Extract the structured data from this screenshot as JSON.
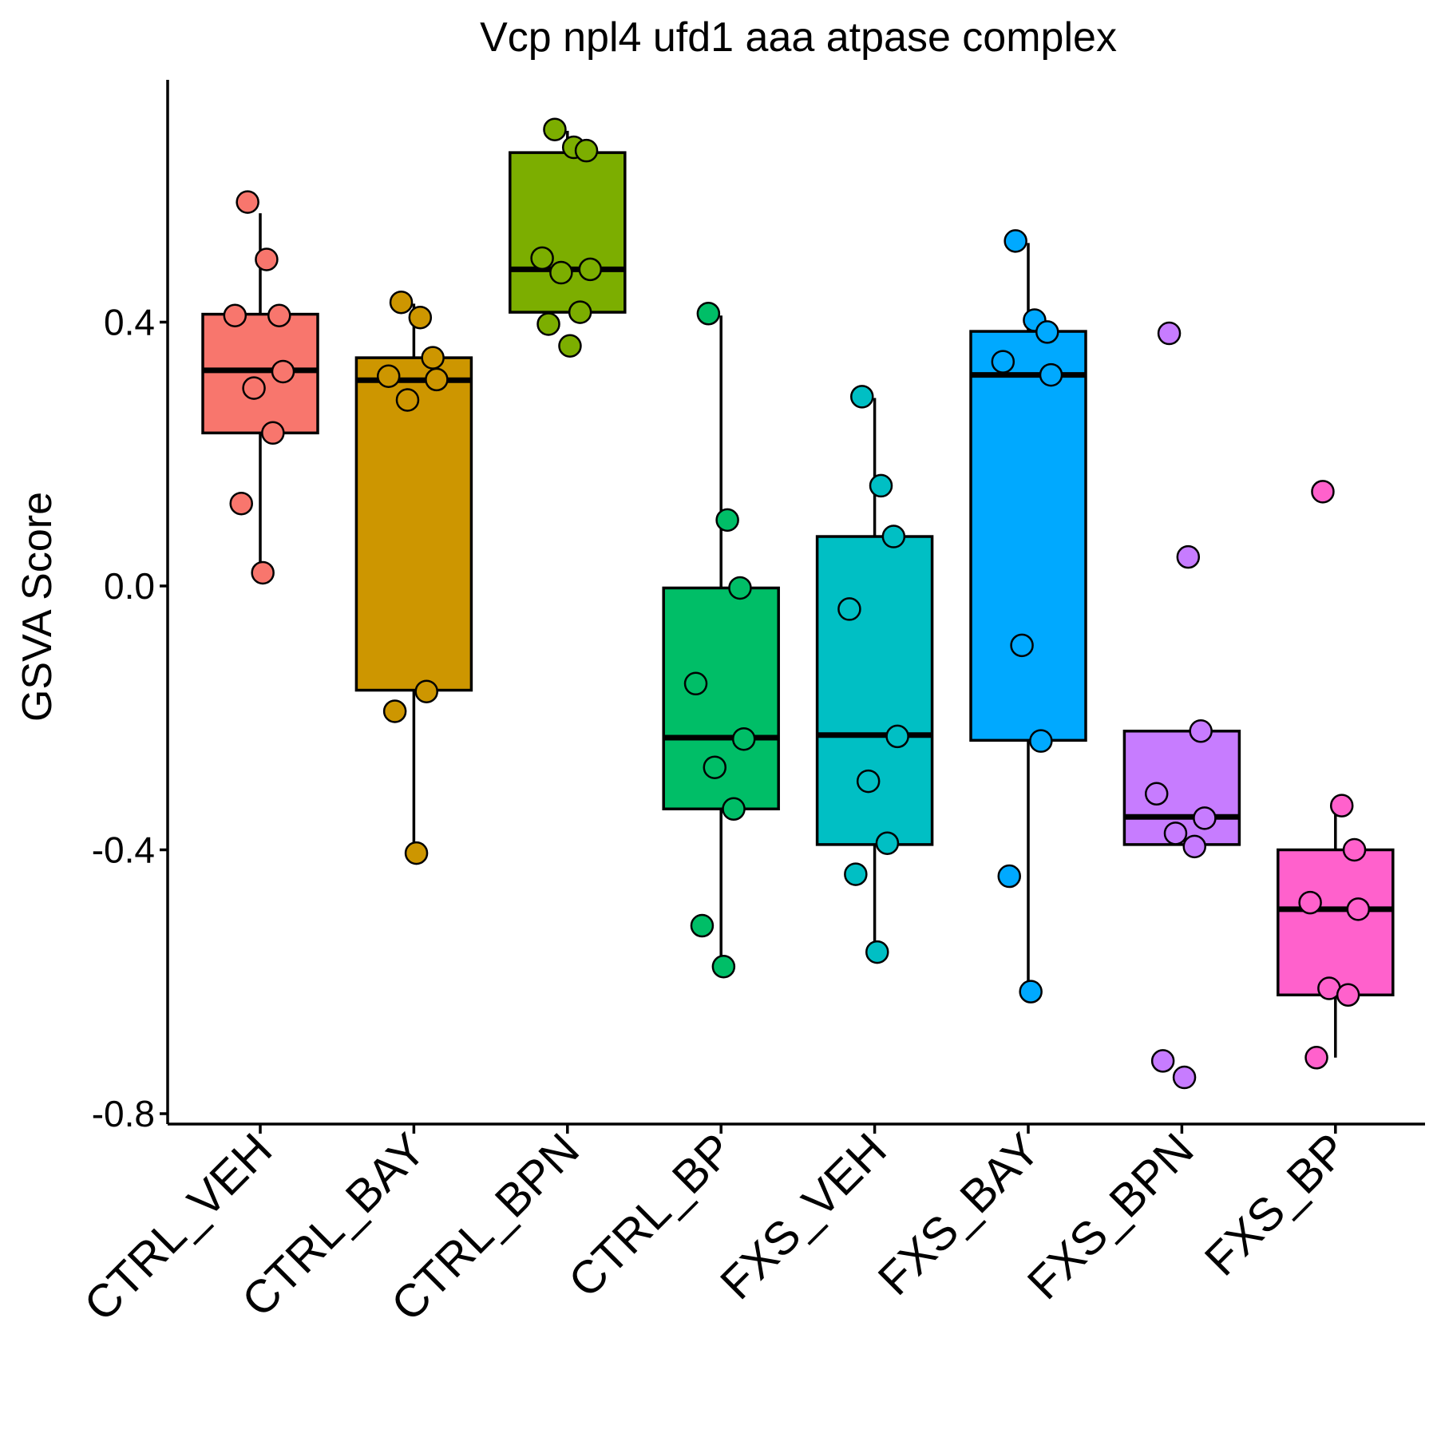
{
  "chart_data": {
    "type": "boxplot",
    "title": "Vcp npl4 ufd1 aaa atpase complex",
    "xlabel": "",
    "ylabel": "GSVA Score",
    "ylim": [
      -0.815,
      0.74
    ],
    "y_ticks": [
      {
        "value": 0.4,
        "label": "0.4"
      },
      {
        "value": 0.0,
        "label": "0.0"
      },
      {
        "value": -0.4,
        "label": "-0.4"
      },
      {
        "value": -0.8,
        "label": "-0.8"
      }
    ],
    "grid": false,
    "legend": "none",
    "categories": [
      "CTRL_VEH",
      "CTRL_BAY",
      "CTRL_BPN",
      "CTRL_BP",
      "FXS_VEH",
      "FXS_BAY",
      "FXS_BPN",
      "FXS_BP"
    ],
    "colors": [
      "#F8766D",
      "#CD9600",
      "#7CAE00",
      "#00BE67",
      "#00BFC4",
      "#00A9FF",
      "#C77CFF",
      "#FF61CC"
    ],
    "series": [
      {
        "category": "CTRL_VEH",
        "whisker_low": 0.02,
        "q1": 0.232,
        "median": 0.327,
        "q3": 0.412,
        "whisker_high": 0.565,
        "points": [
          0.582,
          0.495,
          0.41,
          0.41,
          0.325,
          0.3,
          0.232,
          0.125,
          0.02
        ]
      },
      {
        "category": "CTRL_BAY",
        "whisker_low": -0.406,
        "q1": -0.158,
        "median": 0.312,
        "q3": 0.346,
        "whisker_high": 0.428,
        "points": [
          0.43,
          0.407,
          0.346,
          0.318,
          0.313,
          0.282,
          -0.16,
          -0.19,
          -0.405
        ]
      },
      {
        "category": "CTRL_BPN",
        "whisker_low": 0.415,
        "q1": 0.415,
        "median": 0.48,
        "q3": 0.657,
        "whisker_high": 0.69,
        "points": [
          0.692,
          0.665,
          0.66,
          0.497,
          0.48,
          0.475,
          0.415,
          0.397,
          0.364
        ]
      },
      {
        "category": "CTRL_BP",
        "whisker_low": -0.576,
        "q1": -0.338,
        "median": -0.23,
        "q3": -0.003,
        "whisker_high": 0.41,
        "points": [
          0.413,
          0.1,
          -0.003,
          -0.148,
          -0.232,
          -0.275,
          -0.338,
          -0.515,
          -0.577
        ]
      },
      {
        "category": "FXS_VEH",
        "whisker_low": -0.552,
        "q1": -0.392,
        "median": -0.226,
        "q3": 0.075,
        "whisker_high": 0.285,
        "points": [
          0.287,
          0.152,
          0.075,
          -0.035,
          -0.228,
          -0.296,
          -0.39,
          -0.437,
          -0.555
        ]
      },
      {
        "category": "FXS_BAY",
        "whisker_low": -0.61,
        "q1": -0.234,
        "median": 0.32,
        "q3": 0.386,
        "whisker_high": 0.52,
        "points": [
          0.523,
          0.403,
          0.385,
          0.34,
          0.32,
          -0.09,
          -0.235,
          -0.44,
          -0.615
        ]
      },
      {
        "category": "FXS_BPN",
        "whisker_low": -0.392,
        "q1": -0.392,
        "median": -0.35,
        "q3": -0.22,
        "whisker_high": -0.22,
        "points": [
          0.383,
          0.044,
          -0.22,
          -0.315,
          -0.352,
          -0.375,
          -0.395,
          -0.72,
          -0.745
        ]
      },
      {
        "category": "FXS_BP",
        "whisker_low": -0.715,
        "q1": -0.62,
        "median": -0.49,
        "q3": -0.4,
        "whisker_high": -0.333,
        "points": [
          0.143,
          -0.333,
          -0.4,
          -0.48,
          -0.49,
          -0.61,
          -0.62,
          -0.715
        ]
      }
    ]
  }
}
